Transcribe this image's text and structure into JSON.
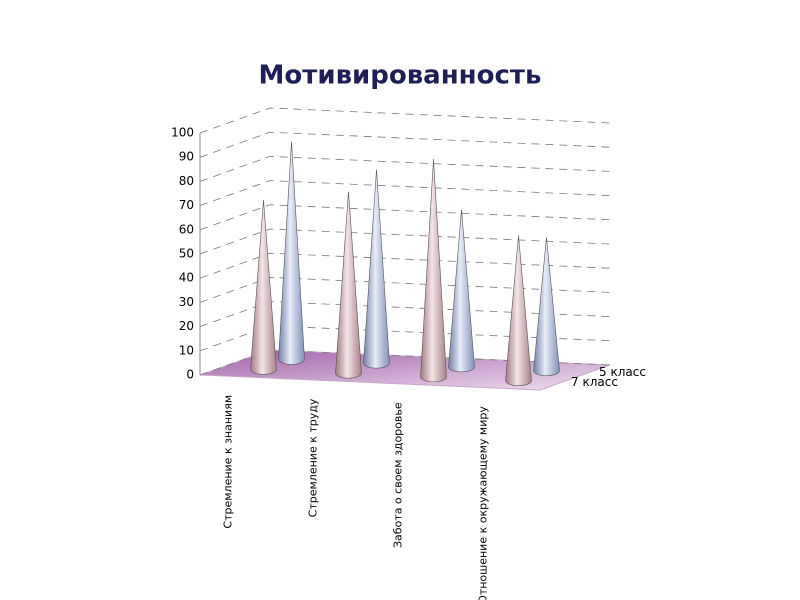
{
  "chart_data": {
    "type": "cone3d",
    "title": "Мотивированность",
    "categories": [
      "Стремление к знаниям",
      "Стремление к труду",
      "Забота о своем здоровье",
      "Отношение к окружающему миру"
    ],
    "series": [
      {
        "name": "5 класс",
        "color": "#b4c0e0",
        "values": [
          90,
          80,
          65,
          55
        ]
      },
      {
        "name": "7 класс",
        "color": "#dcb8c0",
        "values": [
          70,
          75,
          90,
          60
        ]
      }
    ],
    "ylim": [
      0,
      100
    ],
    "yticks": [
      0,
      10,
      20,
      30,
      40,
      50,
      60,
      70,
      80,
      90,
      100
    ],
    "grid": true
  }
}
